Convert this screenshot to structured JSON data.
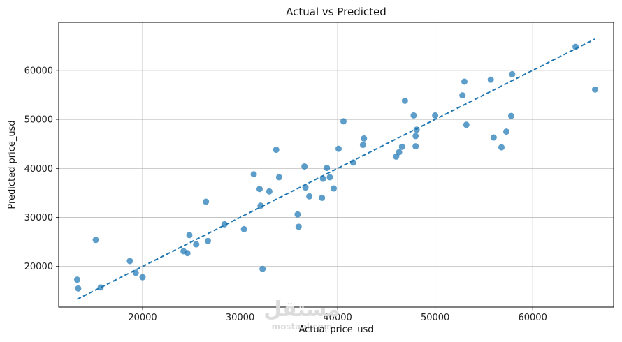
{
  "chart_data": {
    "type": "scatter",
    "title": "Actual vs Predicted",
    "xlabel": "Actual price_usd",
    "ylabel": "Predicted price_usd",
    "xlim": [
      11400,
      68300
    ],
    "ylim": [
      11700,
      69800
    ],
    "xticks": [
      20000,
      30000,
      40000,
      50000,
      60000
    ],
    "yticks": [
      20000,
      30000,
      40000,
      50000,
      60000
    ],
    "grid": true,
    "point_color": "#1f77b4",
    "line_color": "#1f77b4",
    "points": [
      {
        "x": 13300,
        "y": 17300
      },
      {
        "x": 13400,
        "y": 15500
      },
      {
        "x": 15200,
        "y": 25400
      },
      {
        "x": 15700,
        "y": 15700
      },
      {
        "x": 18700,
        "y": 21100
      },
      {
        "x": 19300,
        "y": 18700
      },
      {
        "x": 20000,
        "y": 17800
      },
      {
        "x": 24200,
        "y": 23100
      },
      {
        "x": 24600,
        "y": 22700
      },
      {
        "x": 24800,
        "y": 26400
      },
      {
        "x": 25500,
        "y": 24500
      },
      {
        "x": 26500,
        "y": 33200
      },
      {
        "x": 26700,
        "y": 25200
      },
      {
        "x": 28400,
        "y": 28600
      },
      {
        "x": 30400,
        "y": 27600
      },
      {
        "x": 31400,
        "y": 38800
      },
      {
        "x": 32000,
        "y": 35800
      },
      {
        "x": 32100,
        "y": 32400
      },
      {
        "x": 32300,
        "y": 19500
      },
      {
        "x": 33000,
        "y": 35300
      },
      {
        "x": 33700,
        "y": 43800
      },
      {
        "x": 34000,
        "y": 38200
      },
      {
        "x": 35900,
        "y": 30600
      },
      {
        "x": 36000,
        "y": 28100
      },
      {
        "x": 36600,
        "y": 40400
      },
      {
        "x": 36700,
        "y": 36100
      },
      {
        "x": 37100,
        "y": 34300
      },
      {
        "x": 38400,
        "y": 34000
      },
      {
        "x": 38500,
        "y": 37900
      },
      {
        "x": 38900,
        "y": 40100
      },
      {
        "x": 39200,
        "y": 38200
      },
      {
        "x": 39600,
        "y": 35900
      },
      {
        "x": 40100,
        "y": 44000
      },
      {
        "x": 40600,
        "y": 49600
      },
      {
        "x": 41600,
        "y": 41200
      },
      {
        "x": 42600,
        "y": 44800
      },
      {
        "x": 42700,
        "y": 46100
      },
      {
        "x": 46000,
        "y": 42400
      },
      {
        "x": 46300,
        "y": 43300
      },
      {
        "x": 46600,
        "y": 44400
      },
      {
        "x": 46900,
        "y": 53800
      },
      {
        "x": 47800,
        "y": 50800
      },
      {
        "x": 48000,
        "y": 46600
      },
      {
        "x": 48000,
        "y": 44500
      },
      {
        "x": 48100,
        "y": 47900
      },
      {
        "x": 50000,
        "y": 50800
      },
      {
        "x": 52800,
        "y": 54900
      },
      {
        "x": 53000,
        "y": 57700
      },
      {
        "x": 53200,
        "y": 48900
      },
      {
        "x": 55700,
        "y": 58100
      },
      {
        "x": 56000,
        "y": 46300
      },
      {
        "x": 56800,
        "y": 44300
      },
      {
        "x": 57300,
        "y": 47500
      },
      {
        "x": 57800,
        "y": 50700
      },
      {
        "x": 57900,
        "y": 59200
      },
      {
        "x": 64400,
        "y": 64800
      },
      {
        "x": 66400,
        "y": 56100
      }
    ],
    "reference_line": {
      "style": "dashed",
      "from": [
        13300,
        13300
      ],
      "to": [
        66400,
        66400
      ]
    }
  },
  "watermark": {
    "arabic": "مستقل",
    "latin": "mostaql.com"
  }
}
